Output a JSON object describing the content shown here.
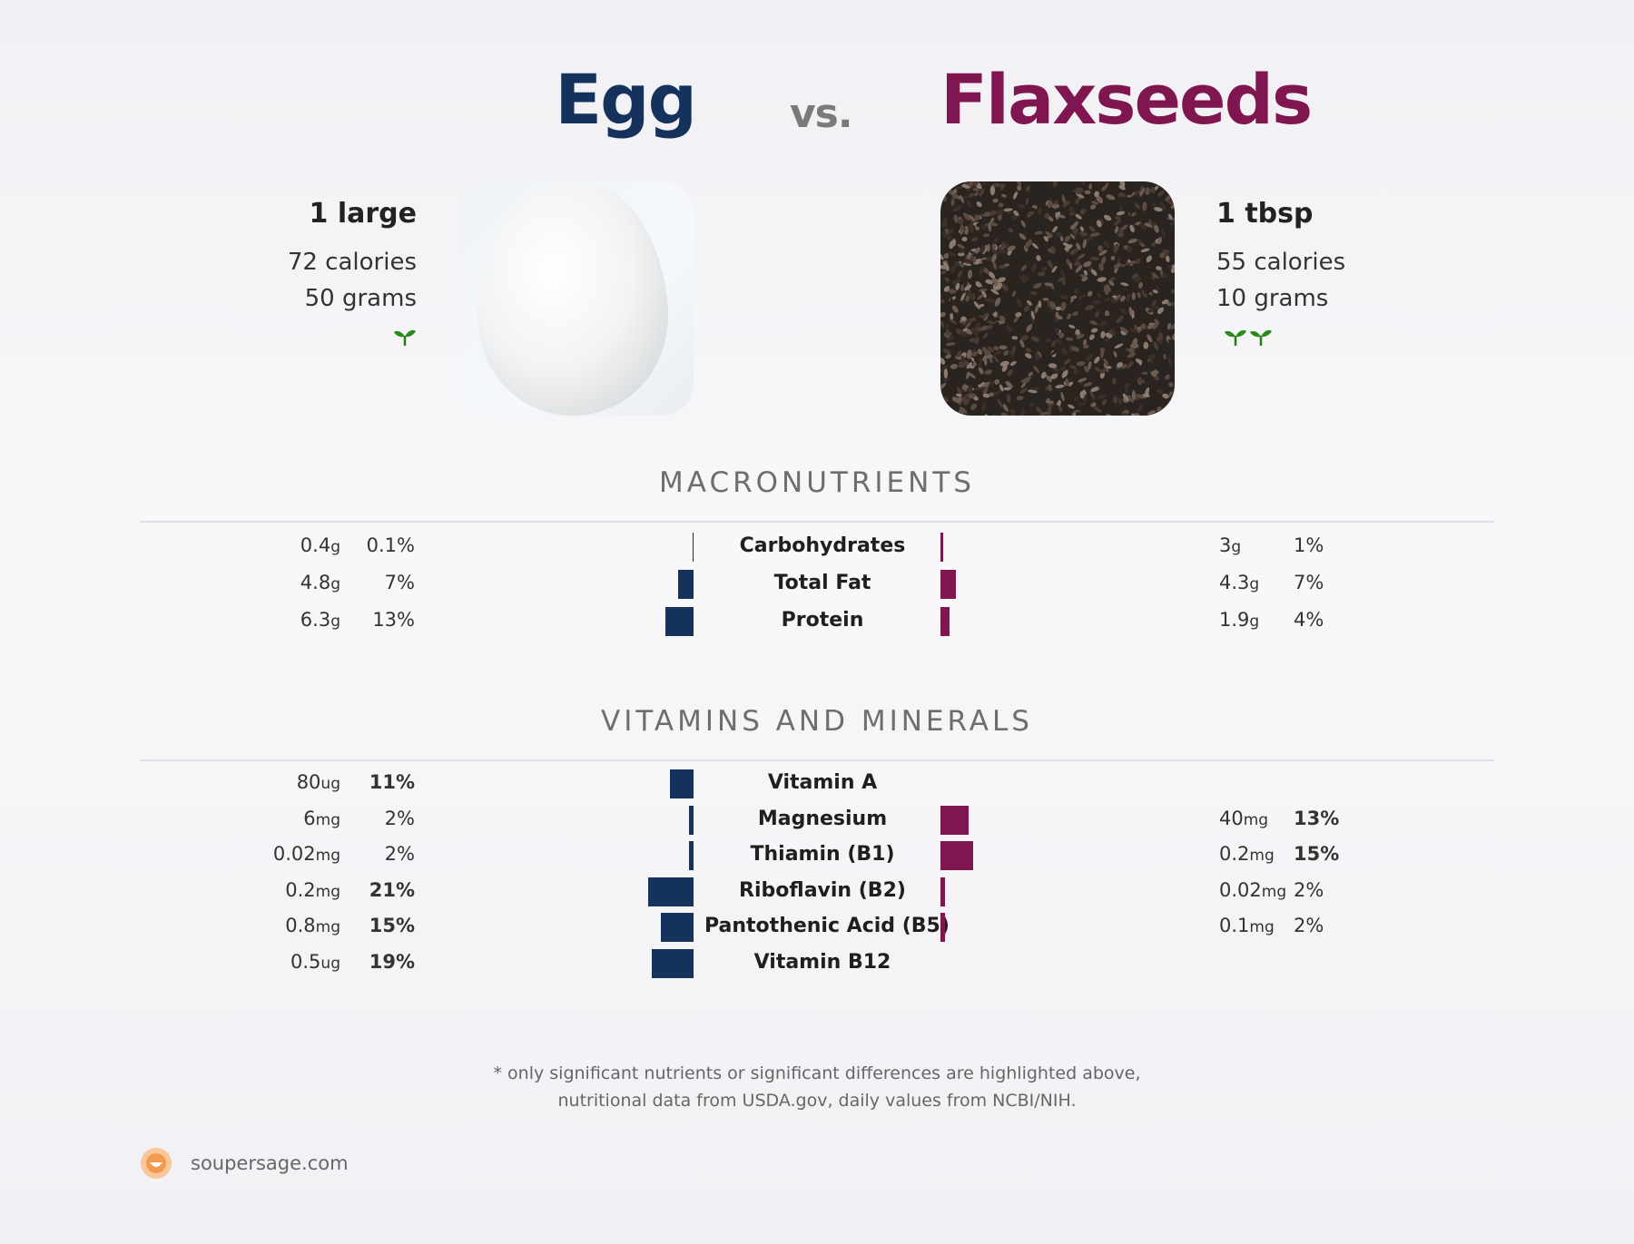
{
  "food_a": {
    "name": "Egg",
    "color": "#14325c",
    "serving": "1 large",
    "calories": "72 calories",
    "grams": "50 grams",
    "sprout_count": 1
  },
  "vs": "vs.",
  "food_b": {
    "name": "Flaxseeds",
    "color": "#7f1650",
    "serving": "1 tbsp",
    "calories": "55 calories",
    "grams": "10 grams",
    "sprout_count": 2
  },
  "macro_title": "MACRONUTRIENTS",
  "vitamin_title": "VITAMINS AND MINERALS",
  "chart_data": {
    "type": "bar",
    "orientation": "horizontal-diverging",
    "unit": "% daily value",
    "sections": [
      {
        "title": "MACRONUTRIENTS",
        "rows": [
          {
            "name": "Carbohydrates",
            "a_amount": "0.4",
            "a_unit": "g",
            "a_pct": 0.1,
            "a_pct_label": "0.1%",
            "a_bold": false,
            "b_amount": "3",
            "b_unit": "g",
            "b_pct": 1,
            "b_pct_label": "1%",
            "b_bold": false
          },
          {
            "name": "Total Fat",
            "a_amount": "4.8",
            "a_unit": "g",
            "a_pct": 7,
            "a_pct_label": "7%",
            "a_bold": false,
            "b_amount": "4.3",
            "b_unit": "g",
            "b_pct": 7,
            "b_pct_label": "7%",
            "b_bold": false
          },
          {
            "name": "Protein",
            "a_amount": "6.3",
            "a_unit": "g",
            "a_pct": 13,
            "a_pct_label": "13%",
            "a_bold": false,
            "b_amount": "1.9",
            "b_unit": "g",
            "b_pct": 4,
            "b_pct_label": "4%",
            "b_bold": false
          }
        ]
      },
      {
        "title": "VITAMINS AND MINERALS",
        "rows": [
          {
            "name": "Vitamin A",
            "a_amount": "80",
            "a_unit": "ug",
            "a_pct": 11,
            "a_pct_label": "11%",
            "a_bold": true,
            "b_amount": "",
            "b_unit": "",
            "b_pct": 0,
            "b_pct_label": "",
            "b_bold": false
          },
          {
            "name": "Magnesium",
            "a_amount": "6",
            "a_unit": "mg",
            "a_pct": 2,
            "a_pct_label": "2%",
            "a_bold": false,
            "b_amount": "40",
            "b_unit": "mg",
            "b_pct": 13,
            "b_pct_label": "13%",
            "b_bold": true
          },
          {
            "name": "Thiamin (B1)",
            "a_amount": "0.02",
            "a_unit": "mg",
            "a_pct": 2,
            "a_pct_label": "2%",
            "a_bold": false,
            "b_amount": "0.2",
            "b_unit": "mg",
            "b_pct": 15,
            "b_pct_label": "15%",
            "b_bold": true
          },
          {
            "name": "Riboflavin (B2)",
            "a_amount": "0.2",
            "a_unit": "mg",
            "a_pct": 21,
            "a_pct_label": "21%",
            "a_bold": true,
            "b_amount": "0.02",
            "b_unit": "mg",
            "b_pct": 2,
            "b_pct_label": "2%",
            "b_bold": false
          },
          {
            "name": "Pantothenic Acid (B5)",
            "a_amount": "0.8",
            "a_unit": "mg",
            "a_pct": 15,
            "a_pct_label": "15%",
            "a_bold": true,
            "b_amount": "0.1",
            "b_unit": "mg",
            "b_pct": 2,
            "b_pct_label": "2%",
            "b_bold": false
          },
          {
            "name": "Vitamin B12",
            "a_amount": "0.5",
            "a_unit": "ug",
            "a_pct": 19,
            "a_pct_label": "19%",
            "a_bold": true,
            "b_amount": "",
            "b_unit": "",
            "b_pct": 0,
            "b_pct_label": "",
            "b_bold": false
          }
        ]
      }
    ]
  },
  "footnote_line1": "* only significant nutrients or significant differences are highlighted above,",
  "footnote_line2": "nutritional data from USDA.gov, daily values from NCBI/NIH.",
  "site": "soupersage.com",
  "logo_icon": "soupersage-logo-icon",
  "sprout_icon": "sprout-icon"
}
